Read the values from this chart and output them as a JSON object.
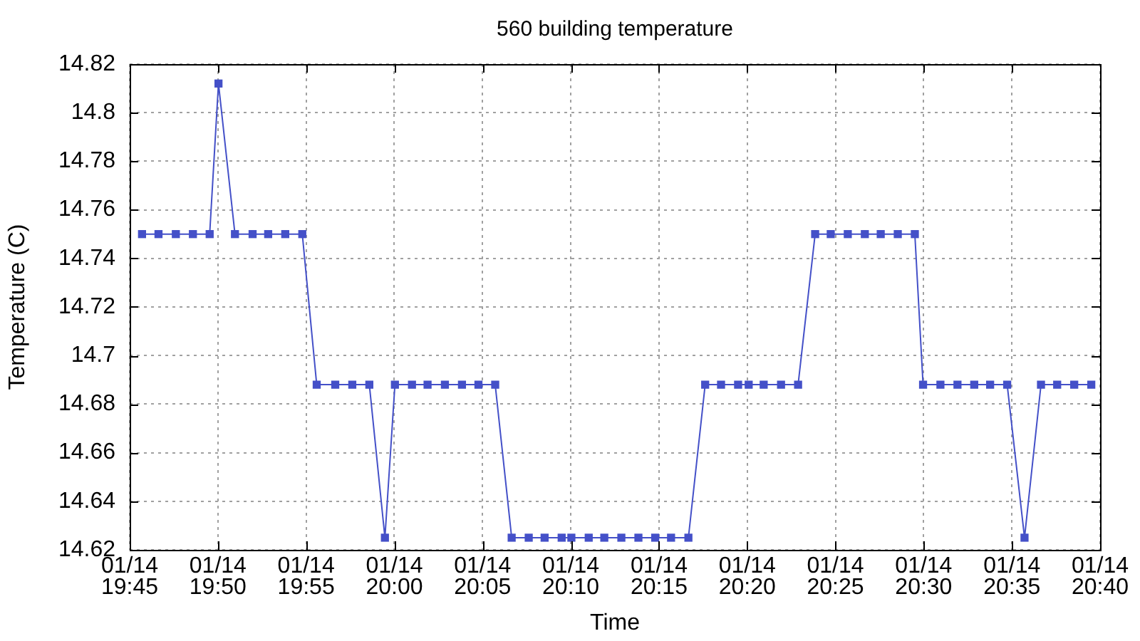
{
  "chart_data": {
    "type": "line",
    "title": "560 building temperature",
    "xlabel": "Time",
    "ylabel": "Temperature (C)",
    "x": [
      "--01-14T19:45:42",
      "--01-14T19:46:38",
      "--01-14T19:47:37",
      "--01-14T19:48:35",
      "--01-14T19:49:32",
      "--01-14T19:50:02",
      "--01-14T19:50:58",
      "--01-14T19:51:58",
      "--01-14T19:52:51",
      "--01-14T19:53:49",
      "--01-14T19:54:47",
      "--01-14T19:55:36",
      "--01-14T19:56:39",
      "--01-14T19:57:37",
      "--01-14T19:58:35",
      "--01-14T19:59:28",
      "--01-14T20:00:02",
      "--01-14T20:01:00",
      "--01-14T20:01:53",
      "--01-14T20:02:52",
      "--01-14T20:03:50",
      "--01-14T20:04:46",
      "--01-14T20:05:43",
      "--01-14T20:06:39",
      "--01-14T20:07:37",
      "--01-14T20:08:31",
      "--01-14T20:09:29",
      "--01-14T20:10:02",
      "--01-14T20:11:01",
      "--01-14T20:11:54",
      "--01-14T20:12:52",
      "--01-14T20:13:50",
      "--01-14T20:14:47",
      "--01-14T20:15:41",
      "--01-14T20:16:40",
      "--01-14T20:17:37",
      "--01-14T20:18:31",
      "--01-14T20:19:29",
      "--01-14T20:20:05",
      "--01-14T20:20:56",
      "--01-14T20:21:55",
      "--01-14T20:22:53",
      "--01-14T20:23:51",
      "--01-14T20:24:44",
      "--01-14T20:25:42",
      "--01-14T20:26:40",
      "--01-14T20:27:34",
      "--01-14T20:28:32",
      "--01-14T20:29:30",
      "--01-14T20:29:58",
      "--01-14T20:30:57",
      "--01-14T20:31:55",
      "--01-14T20:32:52",
      "--01-14T20:33:46",
      "--01-14T20:34:44",
      "--01-14T20:35:43",
      "--01-14T20:36:39",
      "--01-14T20:37:34",
      "--01-14T20:38:32",
      "--01-14T20:39:30"
    ],
    "values": [
      14.75,
      14.75,
      14.75,
      14.75,
      14.75,
      14.812,
      14.75,
      14.75,
      14.75,
      14.75,
      14.75,
      14.688,
      14.688,
      14.688,
      14.688,
      14.625,
      14.688,
      14.688,
      14.688,
      14.688,
      14.688,
      14.688,
      14.688,
      14.625,
      14.625,
      14.625,
      14.625,
      14.625,
      14.625,
      14.625,
      14.625,
      14.625,
      14.625,
      14.625,
      14.625,
      14.688,
      14.688,
      14.688,
      14.688,
      14.688,
      14.688,
      14.688,
      14.75,
      14.75,
      14.75,
      14.75,
      14.75,
      14.75,
      14.75,
      14.688,
      14.688,
      14.688,
      14.688,
      14.688,
      14.688,
      14.625,
      14.688,
      14.688,
      14.688,
      14.688
    ],
    "color": "#4450c8",
    "xlim": [
      "--01-14T19:45",
      "--01-14T20:40"
    ],
    "xticks": [
      {
        "value": "--01-14T19:45",
        "label": "01/14\n19:45"
      },
      {
        "value": "--01-14T19:50",
        "label": "01/14\n19:50"
      },
      {
        "value": "--01-14T19:55",
        "label": "01/14\n19:55"
      },
      {
        "value": "--01-14T20:00",
        "label": "01/14\n20:00"
      },
      {
        "value": "--01-14T20:05",
        "label": "01/14\n20:05"
      },
      {
        "value": "--01-14T20:10",
        "label": "01/14\n20:10"
      },
      {
        "value": "--01-14T20:15",
        "label": "01/14\n20:15"
      },
      {
        "value": "--01-14T20:20",
        "label": "01/14\n20:20"
      },
      {
        "value": "--01-14T20:25",
        "label": "01/14\n20:25"
      },
      {
        "value": "--01-14T20:30",
        "label": "01/14\n20:30"
      },
      {
        "value": "--01-14T20:35",
        "label": "01/14\n20:35"
      },
      {
        "value": "--01-14T20:40",
        "label": "01/14\n20:40"
      }
    ],
    "ylim": [
      14.62,
      14.82
    ],
    "yticks": [
      14.62,
      14.64,
      14.66,
      14.68,
      14.7,
      14.72,
      14.74,
      14.76,
      14.78,
      14.8,
      14.82
    ],
    "grid": true,
    "marker": "square",
    "line_style": "solid"
  }
}
